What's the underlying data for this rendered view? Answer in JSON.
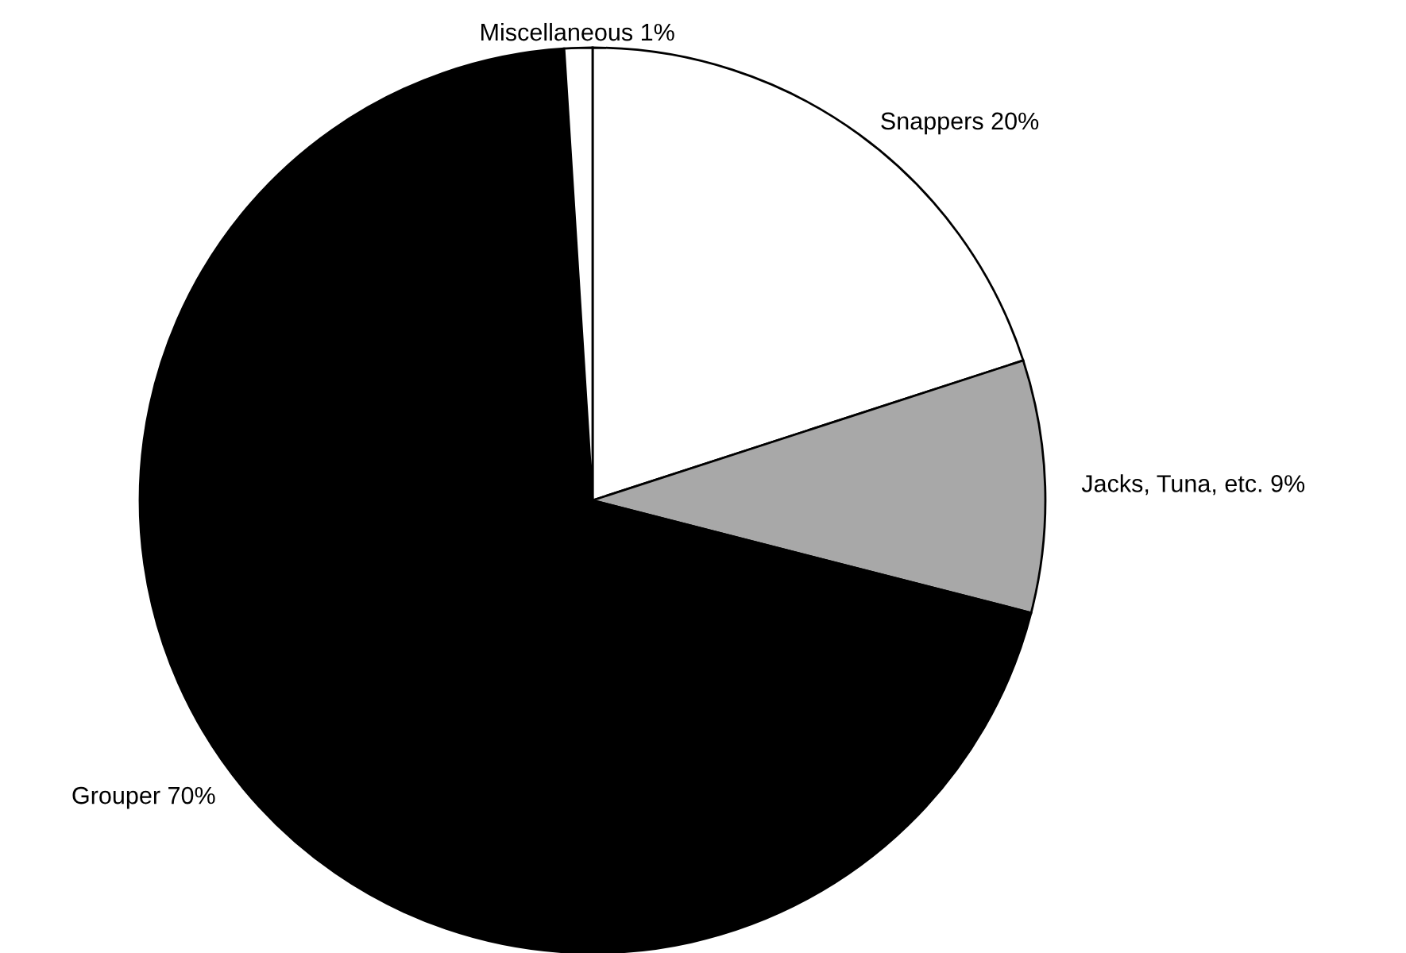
{
  "chart_data": {
    "type": "pie",
    "categories": [
      "Snappers 20%",
      "Jacks, Tuna, etc. 9%",
      "Grouper 70%",
      "Miscellaneous 1%"
    ],
    "values": [
      20,
      9,
      70,
      1
    ],
    "colors": [
      "#ffffff",
      "#a8a8a8",
      "#000000",
      "#ffffff"
    ]
  }
}
